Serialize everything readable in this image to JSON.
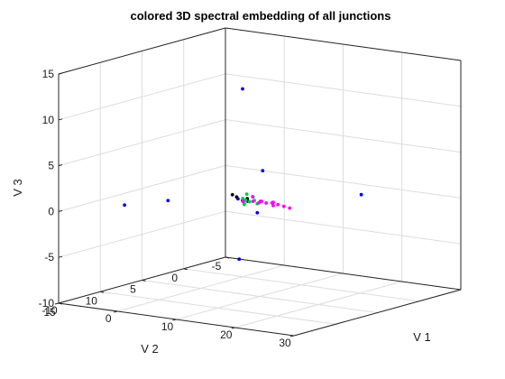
{
  "chart_data": {
    "type": "scatter",
    "title": "colored 3D spectral embedding of all junctions",
    "xlabel": "V 1",
    "ylabel": "V 2",
    "zlabel": "V 3",
    "xlim": [
      -10,
      30
    ],
    "ylim": [
      -5,
      15
    ],
    "zlim": [
      -10,
      15
    ],
    "xticks": [
      "-10",
      "0",
      "10",
      "20",
      "30"
    ],
    "yticks": [
      "-5",
      "0",
      "5",
      "10",
      "15"
    ],
    "zticks": [
      "-10",
      "-5",
      "0",
      "5",
      "10",
      "15"
    ],
    "grid": true,
    "box": true,
    "colors": {
      "blue": "#0000ee",
      "magenta": "#ff00ff",
      "green": "#00cc44",
      "black": "#000000"
    },
    "points": [
      {
        "x": 0.5,
        "y": 14.5,
        "z": 1.5,
        "color": "blue"
      },
      {
        "x": 0,
        "y": 0,
        "z": 10.5,
        "color": "blue"
      },
      {
        "x": 23,
        "y": 2,
        "z": 1.5,
        "color": "blue"
      },
      {
        "x": 2,
        "y": -1,
        "z": 1.5,
        "color": "blue"
      },
      {
        "x": -7,
        "y": 4,
        "z": -1.3,
        "color": "blue"
      },
      {
        "x": 2.5,
        "y": 0,
        "z": -2.8,
        "color": "blue"
      },
      {
        "x": -2,
        "y": -1,
        "z": -8.5,
        "color": "blue"
      },
      {
        "x": 0,
        "y": 0,
        "z": -1.7,
        "color": "blue"
      },
      {
        "x": 0.5,
        "y": -0.3,
        "z": -1.8,
        "color": "blue"
      },
      {
        "x": -0.5,
        "y": 0.2,
        "z": -1.5,
        "color": "blue"
      },
      {
        "x": -0.3,
        "y": 0.5,
        "z": -1.2,
        "color": "black"
      },
      {
        "x": 0.2,
        "y": 0.1,
        "z": -1.6,
        "color": "black"
      },
      {
        "x": 0.8,
        "y": 0,
        "z": -1.4,
        "color": "black"
      },
      {
        "x": -0.6,
        "y": 0.8,
        "z": -0.9,
        "color": "black"
      },
      {
        "x": 0.5,
        "y": 0,
        "z": -1.6,
        "color": "green"
      },
      {
        "x": 1.2,
        "y": 0,
        "z": -1.7,
        "color": "green"
      },
      {
        "x": 2,
        "y": 0,
        "z": -1.5,
        "color": "green"
      },
      {
        "x": 0,
        "y": -0.5,
        "z": -1.1,
        "color": "green"
      },
      {
        "x": 0.6,
        "y": 0.4,
        "z": -1.3,
        "color": "green"
      },
      {
        "x": 1.5,
        "y": -0.2,
        "z": -1.2,
        "color": "green"
      },
      {
        "x": 0.3,
        "y": 0,
        "z": -2.0,
        "color": "green"
      },
      {
        "x": 2.5,
        "y": 0,
        "z": -1.8,
        "color": "green"
      },
      {
        "x": 1.0,
        "y": 0.5,
        "z": -1.9,
        "color": "green"
      },
      {
        "x": 3,
        "y": 0,
        "z": -1.5,
        "color": "magenta"
      },
      {
        "x": 4,
        "y": 0,
        "z": -1.6,
        "color": "magenta"
      },
      {
        "x": 5,
        "y": 0,
        "z": -1.5,
        "color": "magenta"
      },
      {
        "x": 6,
        "y": 0,
        "z": -1.6,
        "color": "magenta"
      },
      {
        "x": 7,
        "y": 0,
        "z": -1.7,
        "color": "magenta"
      },
      {
        "x": 8,
        "y": 0,
        "z": -1.8,
        "color": "magenta"
      },
      {
        "x": 3.5,
        "y": 0.5,
        "z": -1.5,
        "color": "magenta"
      },
      {
        "x": 4.5,
        "y": -0.5,
        "z": -1.6,
        "color": "magenta"
      },
      {
        "x": 1.5,
        "y": 1,
        "z": -1.4,
        "color": "magenta"
      },
      {
        "x": 2.2,
        "y": 0.3,
        "z": -1.5,
        "color": "magenta"
      },
      {
        "x": 5.5,
        "y": 0.2,
        "z": -1.7,
        "color": "magenta"
      },
      {
        "x": 1,
        "y": -0.5,
        "z": -1.3,
        "color": "magenta"
      },
      {
        "x": 2.8,
        "y": -0.3,
        "z": -1.6,
        "color": "magenta"
      }
    ]
  }
}
